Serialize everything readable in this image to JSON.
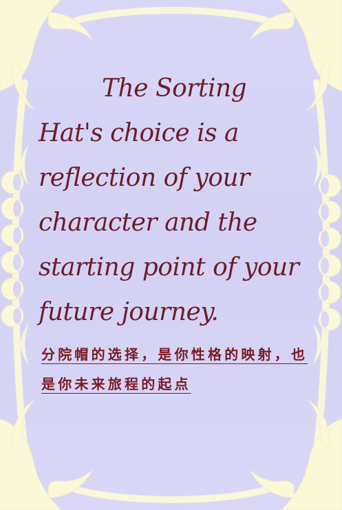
{
  "quote": {
    "english": "The Sorting Hat's choice is a reflection of your character and the starting point of your future journey.",
    "chinese": "分院帽的选择，是你性格的映射，也是你未来旅程的起点"
  },
  "colors": {
    "background": "#d8d6f6",
    "ornament": "#fbf8d8",
    "text": "#6b1d2b"
  },
  "icons": {
    "frame": "scroll-ornament-border",
    "left_column": "crescent-circle-icons",
    "right_column": "crescent-circle-icons"
  }
}
